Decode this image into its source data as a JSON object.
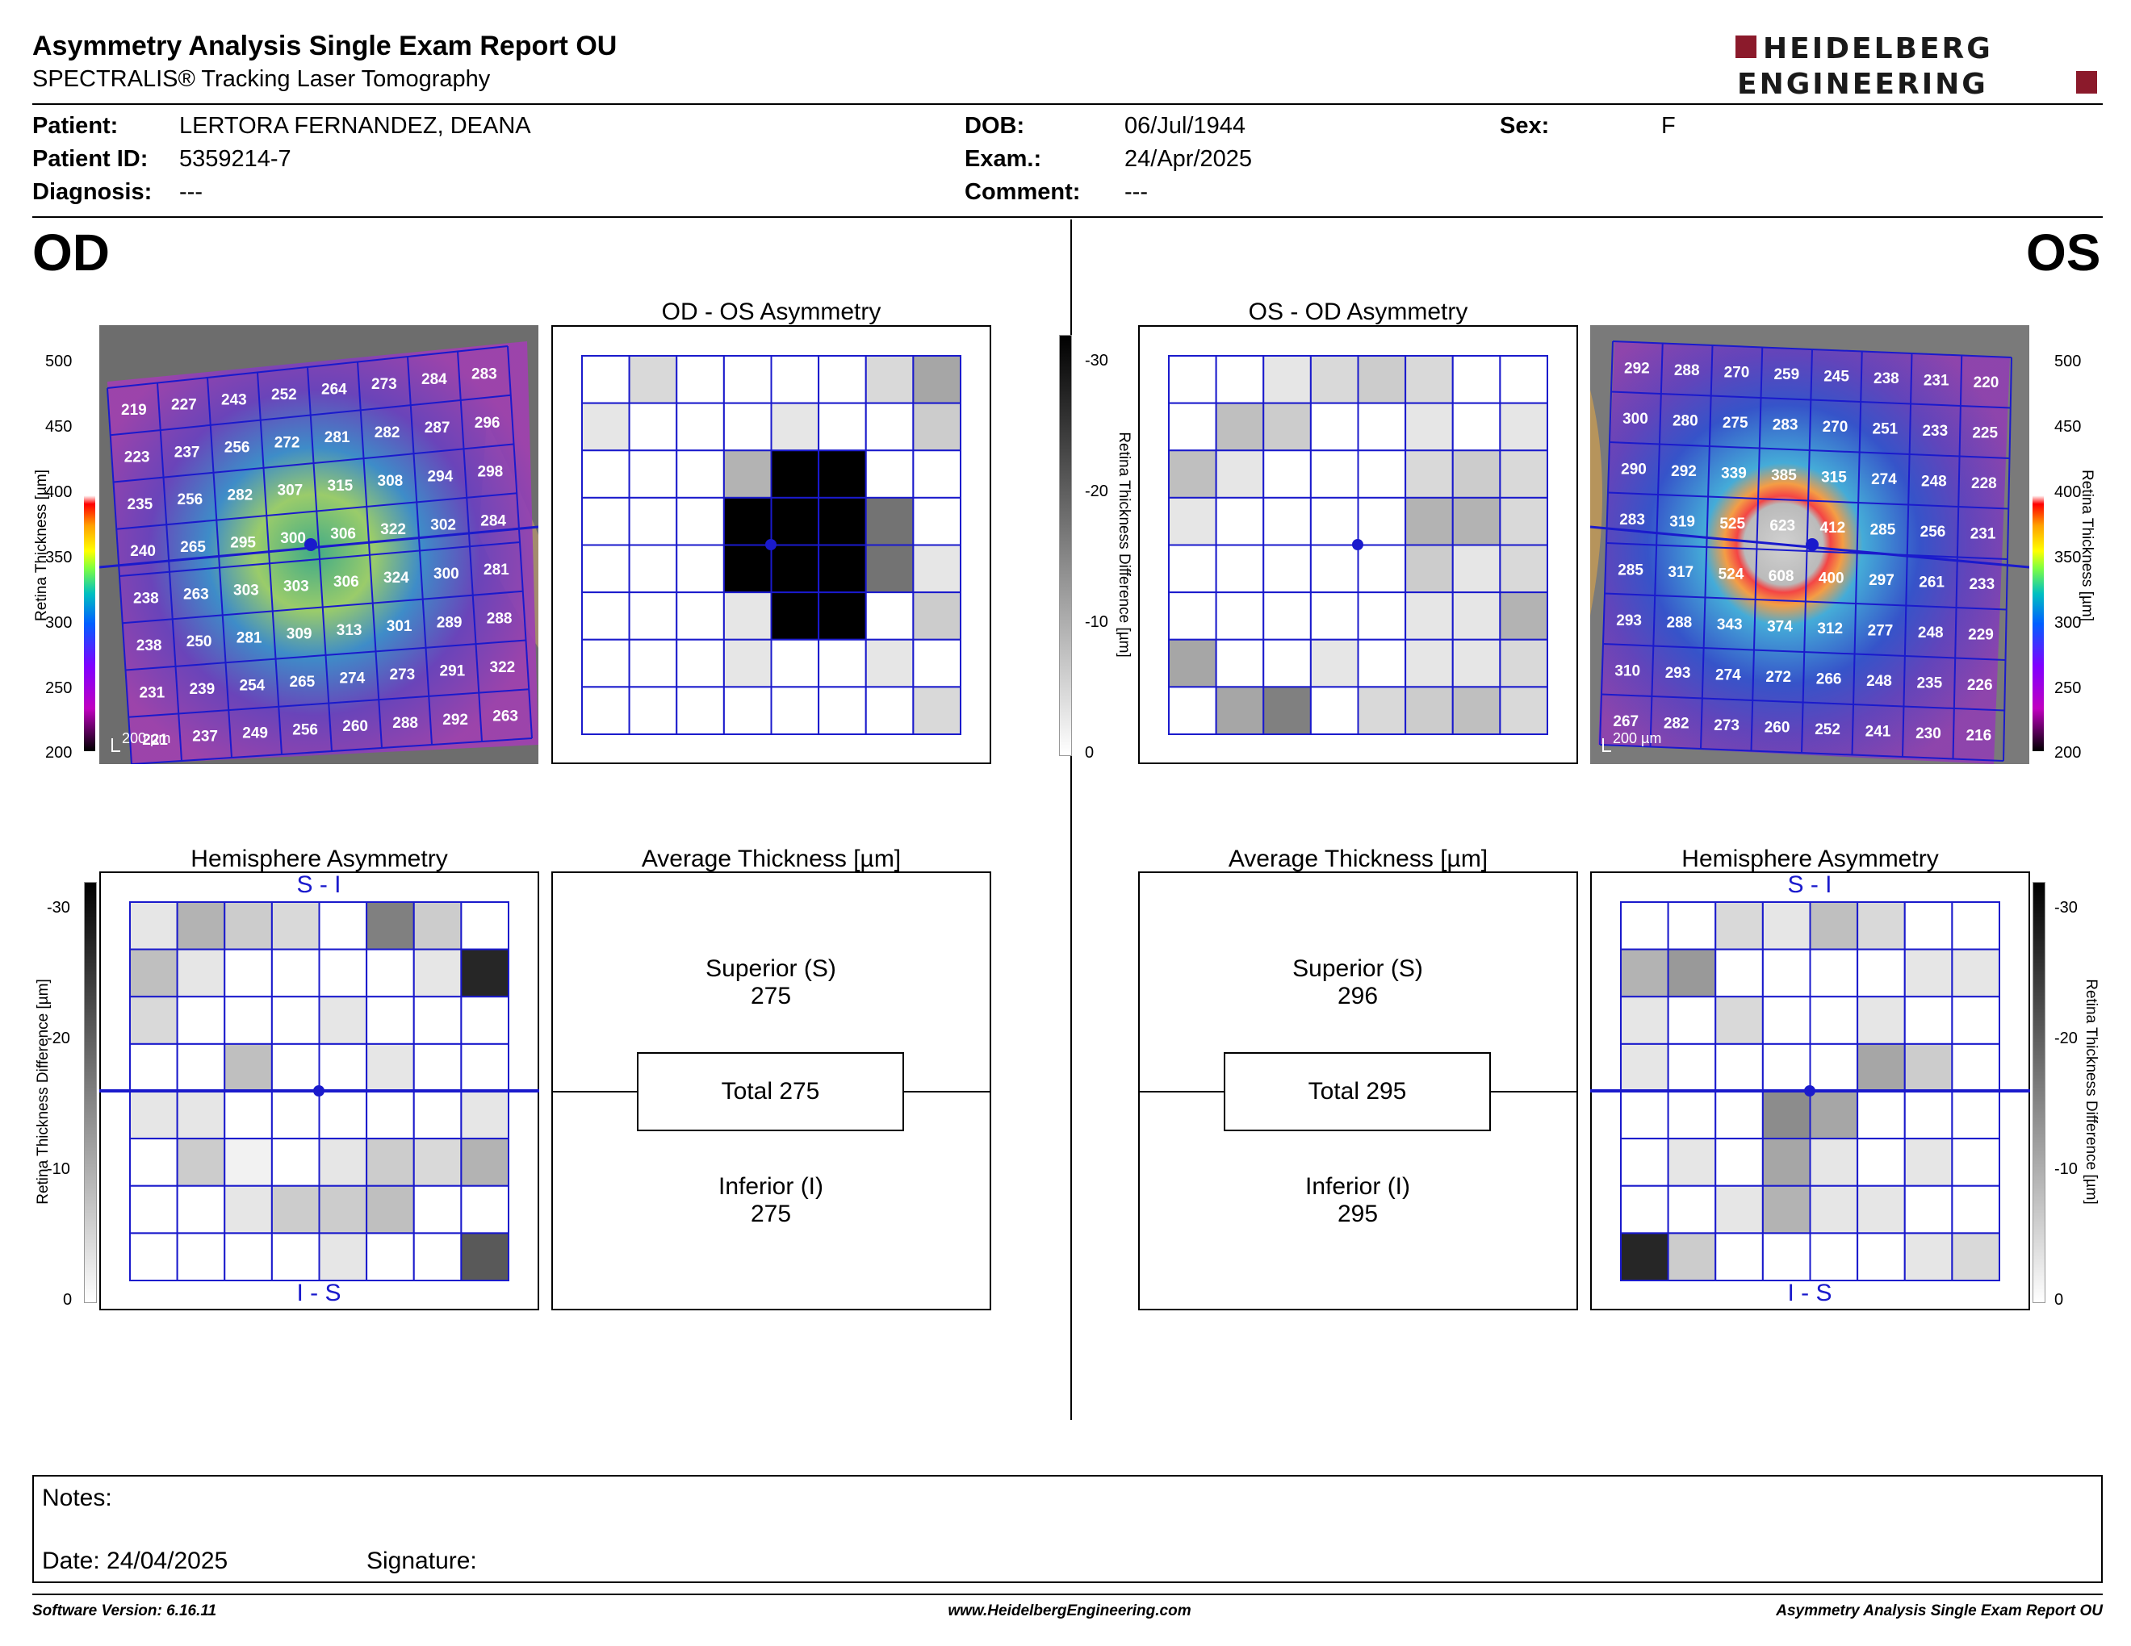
{
  "header": {
    "title": "Asymmetry Analysis Single Exam Report OU",
    "subtitle": "SPECTRALIS® Tracking Laser Tomography",
    "logo": {
      "line1": "HEIDELBERG",
      "line2": "ENGINEERING",
      "accent": "#8b1a2b"
    }
  },
  "patient": {
    "patient_label": "Patient:",
    "patient_value": "LERTORA FERNANDEZ, DEANA",
    "id_label": "Patient ID:",
    "id_value": "5359214-7",
    "diagnosis_label": "Diagnosis:",
    "diagnosis_value": "---",
    "dob_label": "DOB:",
    "dob_value": "06/Jul/1944",
    "exam_label": "Exam.:",
    "exam_value": "24/Apr/2025",
    "comment_label": "Comment:",
    "comment_value": "---",
    "sex_label": "Sex:",
    "sex_value": "F"
  },
  "eyes": {
    "od": "OD",
    "os": "OS"
  },
  "panels": {
    "od_os_asym": "OD - OS Asymmetry",
    "os_od_asym": "OS - OD Asymmetry",
    "hemi_asym": "Hemisphere Asymmetry",
    "avg_thickness": "Average Thickness [µm]",
    "si": "S - I",
    "is": "I - S",
    "scale": "200 µm"
  },
  "axes": {
    "thickness_label": "Retina  Thickness [µm]",
    "thickness_label_os": "Retina  Thickness [µm]",
    "diff_label": "Retina Thickness Difference [µm]",
    "thickness_ticks": [
      "500",
      "450",
      "400",
      "350",
      "300",
      "250",
      "200"
    ],
    "diff_ticks": [
      "-30",
      "-20",
      "-10",
      "0"
    ]
  },
  "chart_data": [
    {
      "type": "heatmap",
      "name_ref": "OD retina thickness grid",
      "rows": [
        [
          "219",
          "227",
          "243",
          "252",
          "264",
          "273",
          "284",
          "283"
        ],
        [
          "223",
          "237",
          "256",
          "272",
          "281",
          "282",
          "287",
          "296"
        ],
        [
          "235",
          "256",
          "282",
          "307",
          "315",
          "308",
          "294",
          "298"
        ],
        [
          "240",
          "265",
          "295",
          "300",
          "306",
          "322",
          "302",
          "284"
        ],
        [
          "238",
          "263",
          "303",
          "303",
          "306",
          "324",
          "300",
          "281"
        ],
        [
          "238",
          "250",
          "281",
          "309",
          "313",
          "301",
          "289",
          "288"
        ],
        [
          "231",
          "239",
          "254",
          "265",
          "274",
          "273",
          "291",
          "322"
        ],
        [
          "221",
          "237",
          "249",
          "256",
          "260",
          "288",
          "292",
          "263"
        ]
      ],
      "scale_range": [
        200,
        500
      ]
    },
    {
      "type": "heatmap",
      "name_ref": "OS retina thickness grid",
      "rows": [
        [
          "292",
          "288",
          "270",
          "259",
          "245",
          "238",
          "231",
          "220"
        ],
        [
          "300",
          "280",
          "275",
          "283",
          "270",
          "251",
          "233",
          "225"
        ],
        [
          "290",
          "292",
          "339",
          "385",
          "315",
          "274",
          "248",
          "228"
        ],
        [
          "283",
          "319",
          "525",
          "623",
          "412",
          "285",
          "256",
          "231"
        ],
        [
          "285",
          "317",
          "524",
          "608",
          "400",
          "297",
          "261",
          "233"
        ],
        [
          "293",
          "288",
          "343",
          "374",
          "312",
          "277",
          "248",
          "229"
        ],
        [
          "310",
          "293",
          "274",
          "272",
          "266",
          "248",
          "235",
          "226"
        ],
        [
          "267",
          "282",
          "273",
          "260",
          "252",
          "241",
          "230",
          "216"
        ]
      ],
      "scale_range": [
        200,
        500
      ]
    },
    {
      "type": "heatmap",
      "name_ref": "OD - OS asymmetry grid",
      "gray_levels": [
        [
          0,
          0.15,
          0,
          0,
          0,
          0,
          0.15,
          0.35
        ],
        [
          0.1,
          0,
          0,
          0,
          0.1,
          0,
          0,
          0.2
        ],
        [
          0,
          0,
          0,
          0.3,
          1,
          1,
          0,
          0
        ],
        [
          0,
          0,
          0,
          1,
          1,
          1,
          0.55,
          0
        ],
        [
          0,
          0,
          0,
          1,
          1,
          1,
          0.55,
          0.1
        ],
        [
          0,
          0,
          0,
          0.1,
          1,
          1,
          0,
          0.2
        ],
        [
          0,
          0,
          0,
          0.1,
          0,
          0,
          0.1,
          0
        ],
        [
          0,
          0,
          0,
          0,
          0,
          0,
          0,
          0.15
        ]
      ],
      "scale_range": [
        0,
        -30
      ]
    },
    {
      "type": "heatmap",
      "name_ref": "OS - OD asymmetry grid",
      "gray_levels": [
        [
          0,
          0,
          0.1,
          0.15,
          0.2,
          0.15,
          0,
          0
        ],
        [
          0,
          0.25,
          0.2,
          0,
          0,
          0.1,
          0,
          0.1
        ],
        [
          0.25,
          0.1,
          0,
          0,
          0,
          0.15,
          0.2,
          0.15
        ],
        [
          0.1,
          0,
          0,
          0,
          0,
          0.3,
          0.3,
          0.15
        ],
        [
          0,
          0,
          0,
          0,
          0,
          0.2,
          0.1,
          0.15
        ],
        [
          0,
          0,
          0,
          0,
          0,
          0.1,
          0.1,
          0.3
        ],
        [
          0.35,
          0,
          0,
          0.1,
          0,
          0.1,
          0.1,
          0.15
        ],
        [
          0,
          0.35,
          0.5,
          0,
          0.15,
          0.2,
          0.25,
          0.15
        ]
      ],
      "scale_range": [
        0,
        -30
      ]
    },
    {
      "type": "heatmap",
      "name_ref": "OD hemisphere asymmetry grid",
      "gray_levels": [
        [
          0.1,
          0.3,
          0.2,
          0.15,
          0,
          0.5,
          0.2,
          0
        ],
        [
          0.25,
          0.1,
          0,
          0,
          0,
          0,
          0.1,
          0.85
        ],
        [
          0.15,
          0,
          0,
          0,
          0.1,
          0,
          0,
          0
        ],
        [
          0,
          0,
          0.25,
          0,
          0,
          0.1,
          0,
          0
        ],
        [
          0.1,
          0.1,
          0,
          0,
          0,
          0,
          0,
          0.1
        ],
        [
          0,
          0.2,
          0.05,
          0,
          0.1,
          0.2,
          0.15,
          0.3
        ],
        [
          0,
          0,
          0.1,
          0.2,
          0.2,
          0.25,
          0,
          0
        ],
        [
          0,
          0,
          0,
          0,
          0.1,
          0,
          0,
          0.65
        ]
      ],
      "scale_range": [
        0,
        -30
      ]
    },
    {
      "type": "heatmap",
      "name_ref": "OS hemisphere asymmetry grid",
      "gray_levels": [
        [
          0,
          0,
          0.15,
          0.1,
          0.25,
          0.15,
          0,
          0
        ],
        [
          0.3,
          0.4,
          0,
          0,
          0,
          0,
          0.1,
          0.1
        ],
        [
          0.1,
          0,
          0.15,
          0,
          0,
          0.1,
          0,
          0
        ],
        [
          0.1,
          0,
          0,
          0,
          0,
          0.35,
          0.2,
          0
        ],
        [
          0,
          0,
          0,
          0.45,
          0.35,
          0,
          0,
          0
        ],
        [
          0,
          0.1,
          0,
          0.35,
          0.1,
          0,
          0.1,
          0
        ],
        [
          0,
          0,
          0.1,
          0.3,
          0.1,
          0.1,
          0,
          0
        ],
        [
          0.85,
          0.2,
          0,
          0,
          0,
          0,
          0.1,
          0.15
        ]
      ],
      "scale_range": [
        0,
        -30
      ]
    }
  ],
  "average": {
    "od": {
      "sup_label": "Superior (S)",
      "sup_value": "275",
      "total": "Total 275",
      "inf_label": "Inferior (I)",
      "inf_value": "275"
    },
    "os": {
      "sup_label": "Superior (S)",
      "sup_value": "296",
      "total": "Total 295",
      "inf_label": "Inferior (I)",
      "inf_value": "295"
    }
  },
  "notes": {
    "notes_label": "Notes:",
    "date_label": "Date: 24/04/2025",
    "signature_label": "Signature:"
  },
  "footer": {
    "left": "Software Version: 6.16.11",
    "center": "www.HeidelbergEngineering.com",
    "right": "Asymmetry Analysis Single Exam Report OU"
  },
  "colors": {
    "grid_blue": "#1a1acc",
    "accent": "#8b1a2b"
  }
}
